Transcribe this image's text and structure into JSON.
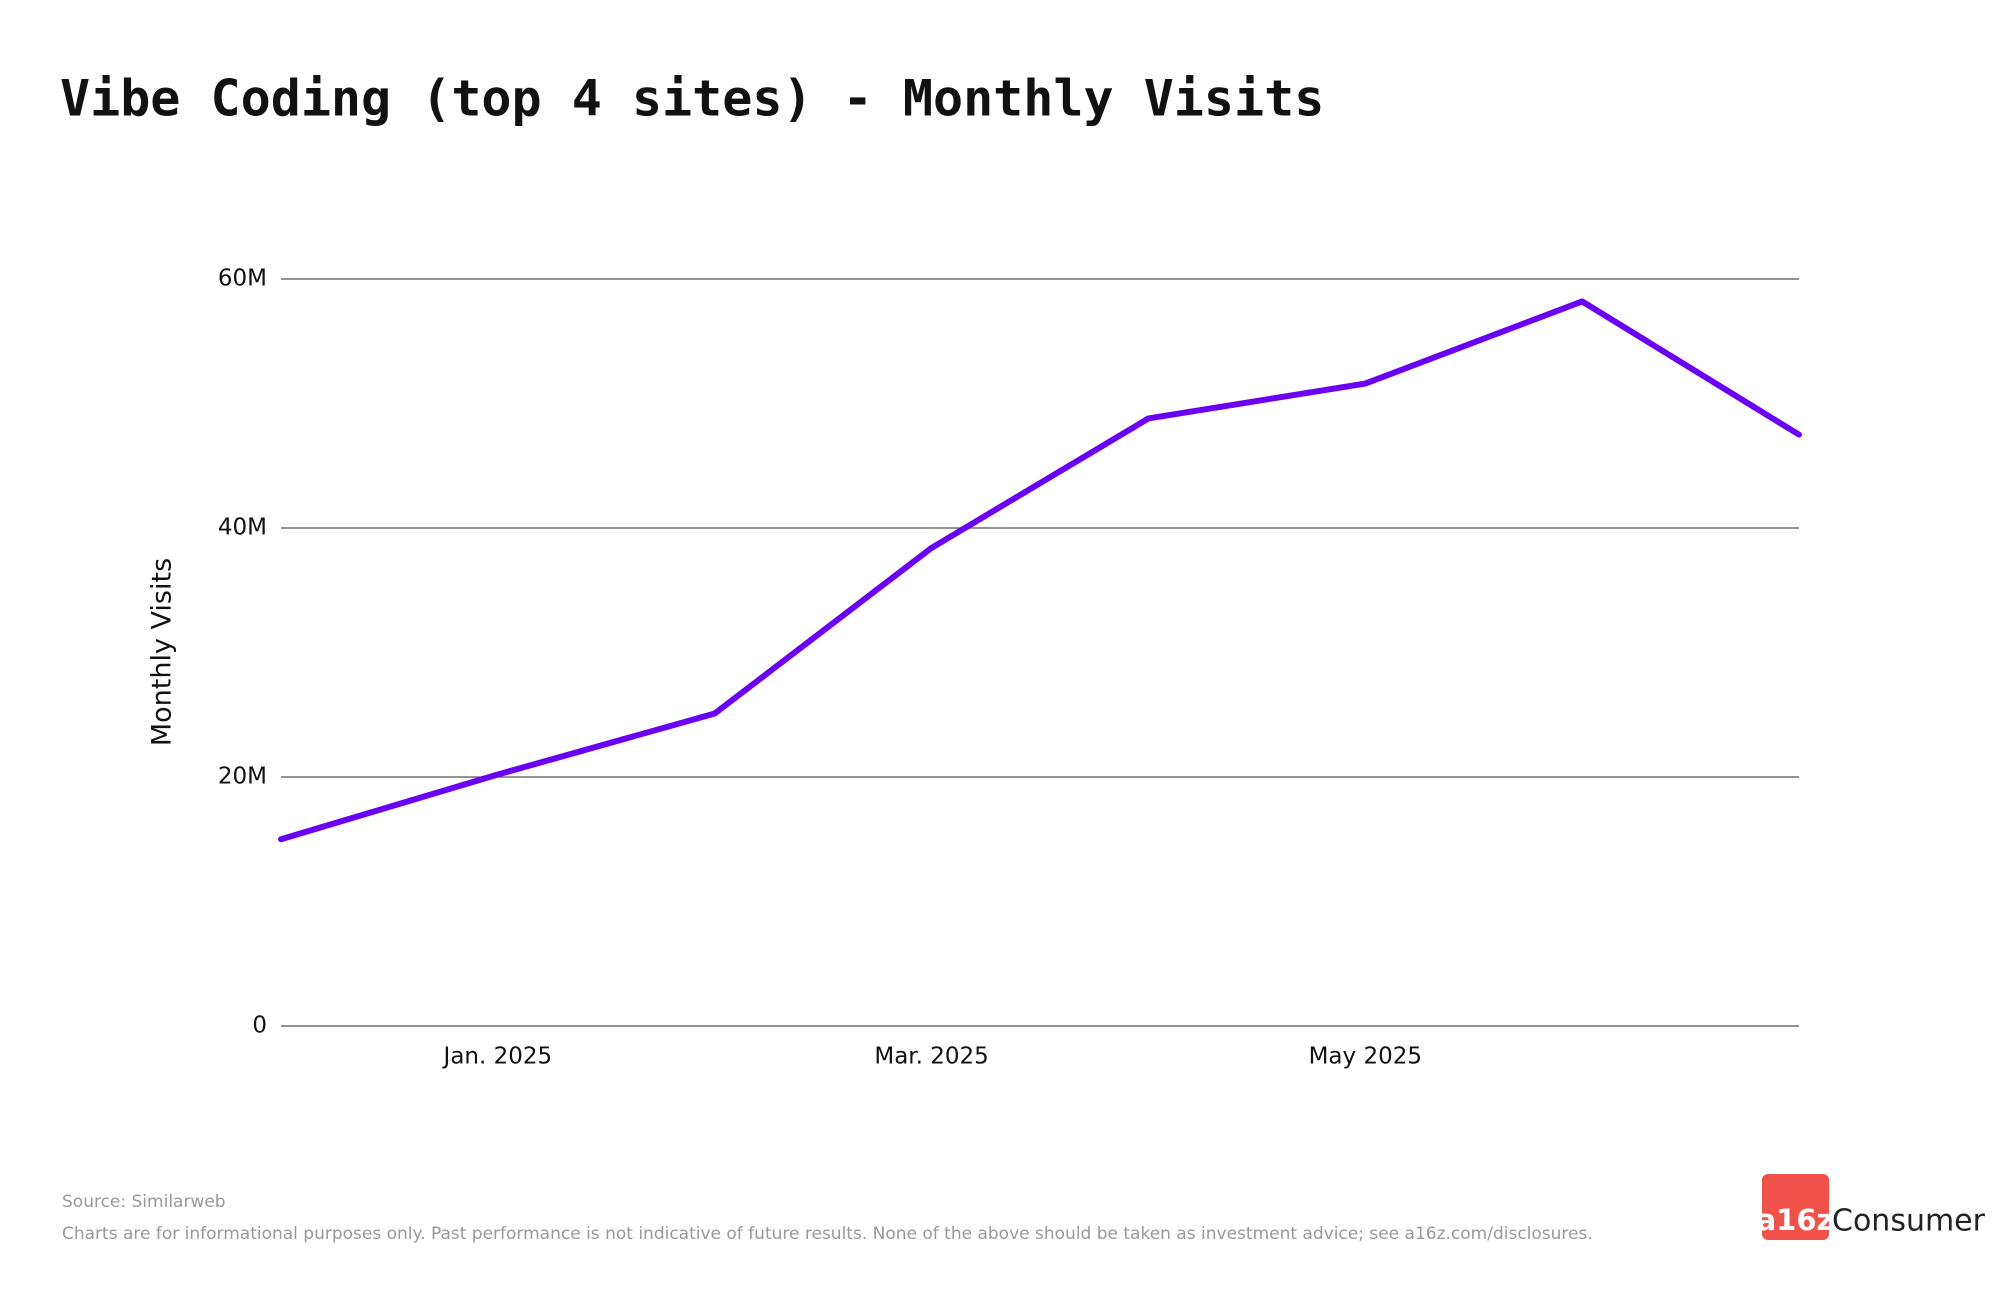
{
  "chart_data": {
    "type": "line",
    "title": "Vibe Coding (top 4 sites) - Monthly Visits",
    "y_label": "Monthly Visits",
    "categories": [
      null,
      "Jan. 2025",
      null,
      "Mar. 2025",
      null,
      "May 2025",
      null,
      null
    ],
    "values": [
      15000000,
      20200000,
      25100000,
      38400000,
      48800000,
      51600000,
      58200000,
      47500000
    ],
    "color": "#6a00f4",
    "ylim": [
      0,
      60000000
    ],
    "yticks": [
      0,
      {
        "value": 20000000,
        "label": "20M"
      },
      {
        "value": 40000000,
        "label": "40M"
      },
      {
        "value": 60000000,
        "label": "60M"
      }
    ],
    "grid": true,
    "source": "Source: Similarweb",
    "disclaimer": "Charts are for informational purposes only. Past performance is not indicative of future results. None of the above should be taken as investment advice; see a16z.com/disclosures.",
    "logo": {
      "mark": "a16z",
      "text": "Consumer"
    }
  }
}
